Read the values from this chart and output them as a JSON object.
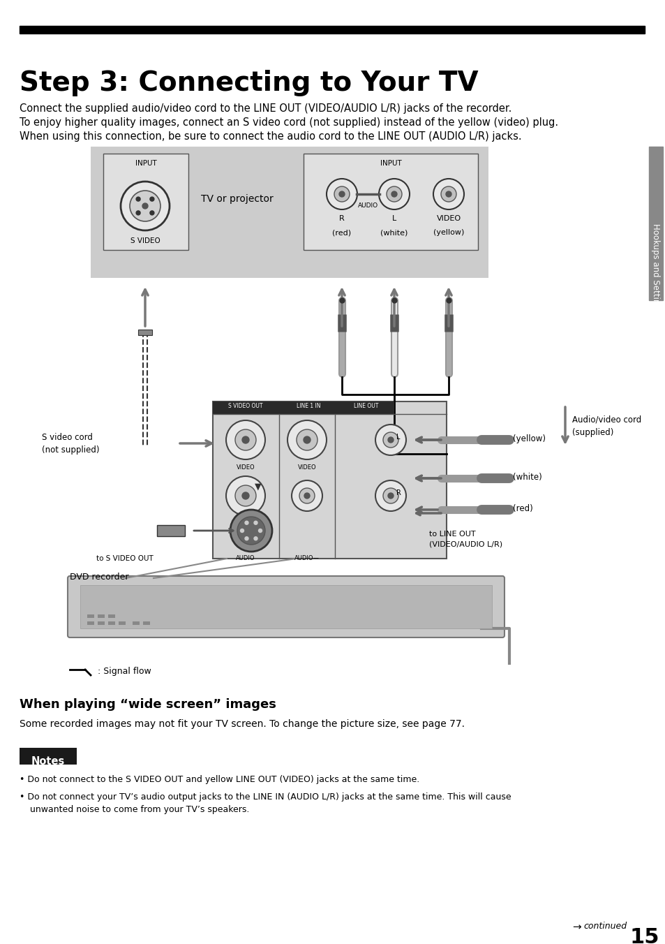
{
  "title": "Step 3: Connecting to Your TV",
  "title_bar_color": "#000000",
  "title_fontsize": 28,
  "bg_color": "#ffffff",
  "body_line1": "Connect the supplied audio/video cord to the LINE OUT (VIDEO/AUDIO L/R) jacks of the recorder.",
  "body_line2": "To enjoy higher quality images, connect an S video cord (not supplied) instead of the yellow (video) plug.",
  "body_line3": "When using this connection, be sure to connect the audio cord to the LINE OUT (AUDIO L/R) jacks.",
  "body_fontsize": 10.5,
  "sidebar_text": "Hookups and Settings",
  "section2_title": "When playing “wide screen” images",
  "section2_body": "Some recorded images may not fit your TV screen. To change the picture size, see page 77.",
  "notes_title": "Notes",
  "notes_bg": "#1a1a1a",
  "notes_text_color": "#ffffff",
  "note1": "Do not connect to the S VIDEO OUT and yellow LINE OUT (VIDEO) jacks at the same time.",
  "note2": "Do not connect your TV’s audio output jacks to the LINE IN (AUDIO L/R) jacks at the same time. This will cause",
  "note2b": "unwanted noise to come from your TV’s speakers.",
  "signal_flow_text": ": Signal flow",
  "continued_text": "continued",
  "page_number": "15",
  "gray_bg": "#cccccc",
  "light_gray": "#e0e0e0",
  "dark_label": "#333333",
  "white": "#ffffff",
  "black": "#000000",
  "mid_gray": "#999999",
  "dark_gray": "#555555"
}
